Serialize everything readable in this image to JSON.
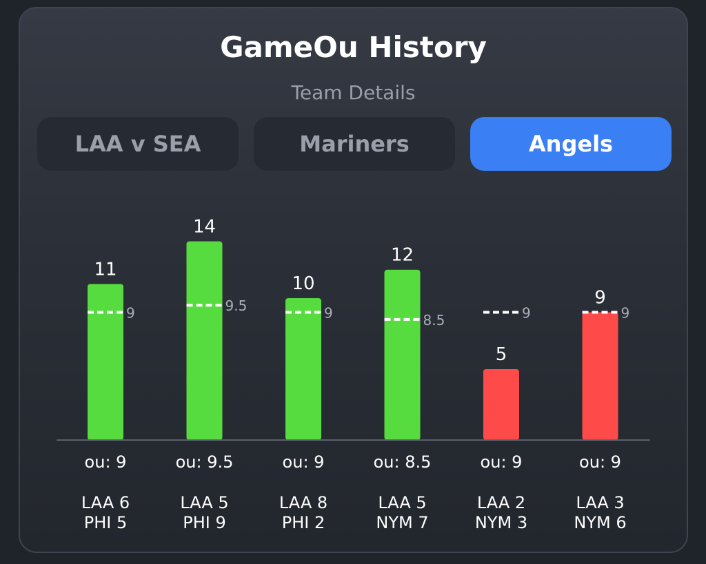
{
  "header": {
    "title": "GameOu History",
    "subtitle": "Team Details"
  },
  "tabs": [
    {
      "label": "LAA v SEA",
      "active": false
    },
    {
      "label": "Mariners",
      "active": false
    },
    {
      "label": "Angels",
      "active": true
    }
  ],
  "colors": {
    "over": "#57dc3f",
    "under": "#ff4a4a",
    "line": "#ffffff",
    "accent": "#3b7ff5"
  },
  "chart_data": {
    "type": "bar",
    "ylim": [
      0,
      16.5
    ],
    "games": [
      {
        "total": 11,
        "ou": 9,
        "ou_label": "ou: 9",
        "score_lines": [
          "LAA 6",
          "PHI 5"
        ],
        "result": "over"
      },
      {
        "total": 14,
        "ou": 9.5,
        "ou_label": "ou: 9.5",
        "score_lines": [
          "LAA 5",
          "PHI 9"
        ],
        "result": "over"
      },
      {
        "total": 10,
        "ou": 9,
        "ou_label": "ou: 9",
        "score_lines": [
          "LAA 8",
          "PHI 2"
        ],
        "result": "over"
      },
      {
        "total": 12,
        "ou": 8.5,
        "ou_label": "ou: 8.5",
        "score_lines": [
          "LAA 5",
          "NYM 7"
        ],
        "result": "over"
      },
      {
        "total": 5,
        "ou": 9,
        "ou_label": "ou: 9",
        "score_lines": [
          "LAA 2",
          "NYM 3"
        ],
        "result": "under"
      },
      {
        "total": 9,
        "ou": 9,
        "ou_label": "ou: 9",
        "score_lines": [
          "LAA 3",
          "NYM 6"
        ],
        "result": "push"
      }
    ]
  }
}
